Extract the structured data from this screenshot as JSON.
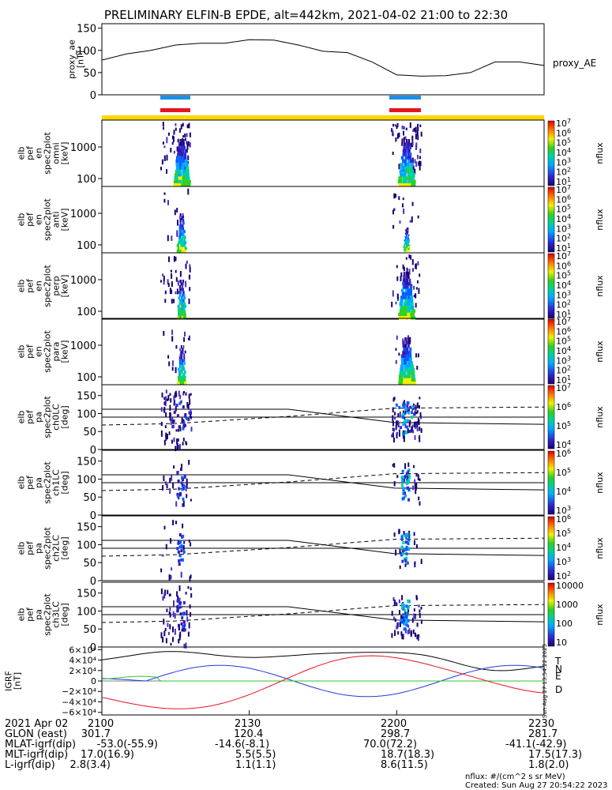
{
  "title": "PRELIMINARY ELFIN-B EPDE, alt=442km, 2021-04-02 21:00 to 22:30",
  "proxy_ae": {
    "ylabel": [
      "proxy_ae",
      "[nT]"
    ],
    "right_label": "proxy_AE",
    "yticks": [
      "150",
      "100",
      "50",
      "0"
    ],
    "ylim": [
      0,
      160
    ],
    "series_t": [
      0,
      5,
      10,
      15,
      20,
      25,
      30,
      35,
      40,
      45,
      50,
      55,
      60,
      65,
      70,
      75,
      80,
      85,
      90
    ],
    "series_v": [
      78,
      92,
      100,
      112,
      116,
      116,
      124,
      123,
      112,
      98,
      95,
      74,
      45,
      42,
      43,
      50,
      74,
      74,
      66
    ]
  },
  "colors": {
    "blue_bar": "#1e8fe6",
    "red_bar": "#e6141e",
    "yellow_bar": "#ffd700",
    "igrf_T": "#000000",
    "igrf_N": "#1e3cdc",
    "igrf_E": "#2ec82e",
    "igrf_D": "#e6141e"
  },
  "energy_panels": [
    {
      "ylabel": [
        "elb",
        "pef",
        "en",
        "spec2plot",
        "omni",
        "[keV]"
      ],
      "ticks": [
        "1000",
        "100"
      ],
      "cbar": [
        "10^7",
        "10^6",
        "10^5",
        "10^4",
        "10^3",
        "10^2",
        "10^1"
      ]
    },
    {
      "ylabel": [
        "elb",
        "pef",
        "en",
        "spec2plot",
        "anti",
        "[keV]"
      ],
      "ticks": [
        "1000",
        "100"
      ],
      "cbar": [
        "10^7",
        "10^6",
        "10^5",
        "10^4",
        "10^3",
        "10^2",
        "10^1"
      ]
    },
    {
      "ylabel": [
        "elb",
        "pef",
        "en",
        "spec2plot",
        "perp",
        "[keV]"
      ],
      "ticks": [
        "1000",
        "100"
      ],
      "cbar": [
        "10^7",
        "10^6",
        "10^5",
        "10^4",
        "10^3",
        "10^2",
        "10^1"
      ]
    },
    {
      "ylabel": [
        "elb",
        "pef",
        "en",
        "spec2plot",
        "para",
        "[keV]"
      ],
      "ticks": [
        "1000",
        "100"
      ],
      "cbar": [
        "10^7",
        "10^6",
        "10^5",
        "10^4",
        "10^3",
        "10^2",
        "10^1"
      ]
    }
  ],
  "pitch_panels": [
    {
      "ylabel": [
        "elb",
        "pef",
        "pa",
        "spec2plot",
        "ch0LC",
        "[deg]"
      ],
      "ticks": [
        "150",
        "100",
        "50",
        "0"
      ],
      "cbar": [
        "10^7",
        "10^6",
        "10^5",
        "10^4"
      ]
    },
    {
      "ylabel": [
        "elb",
        "pef",
        "pa",
        "spec2plot",
        "ch1LC",
        "[deg]"
      ],
      "ticks": [
        "150",
        "100",
        "50",
        "0"
      ],
      "cbar": [
        "10^6",
        "10^5",
        "10^4",
        "10^3"
      ]
    },
    {
      "ylabel": [
        "elb",
        "pef",
        "pa",
        "spec2plot",
        "ch2LC",
        "[deg]"
      ],
      "ticks": [
        "150",
        "100",
        "50",
        "0"
      ],
      "cbar": [
        "10^6",
        "10^5",
        "10^4",
        "10^3",
        "10^2"
      ]
    },
    {
      "ylabel": [
        "elb",
        "pef",
        "pa",
        "spec2plot",
        "ch3LC",
        "[deg]"
      ],
      "ticks": [
        "150",
        "100",
        "50",
        "0"
      ],
      "cbar": [
        "10000",
        "1000",
        "100",
        "10"
      ]
    }
  ],
  "cbar_title": "nflux",
  "igrf": {
    "ylabel": [
      "IGRF",
      "[nT]"
    ],
    "ticks": [
      "6×10⁴",
      "4×10⁴",
      "2×10⁴",
      "0",
      "−2×10⁴",
      "−4×10⁴",
      "−6×10⁴"
    ],
    "ylim": [
      -65000,
      65000
    ],
    "legend": [
      "T",
      "N",
      "E",
      "D"
    ],
    "side_text": "Sun Aug 27 13:54:22 2023"
  },
  "time_axis": {
    "row_label": "2021 Apr 02",
    "ticks": [
      "2100",
      "2130",
      "2200",
      "2230"
    ],
    "rows": [
      {
        "label": "GLON (east)",
        "values": [
          "301.7",
          "120.4",
          "298.7",
          "281.7"
        ]
      },
      {
        "label": "MLAT-igrf(dip)",
        "values": [
          "-53.0(-55.9)",
          "-14.6(-8.1)",
          "70.0(72.2)",
          "-41.1(-42.9)"
        ]
      },
      {
        "label": "MLT-igrf(dip)",
        "values": [
          "17.0(16.9)",
          "5.5(5.5)",
          "18.7(18.3)",
          "17.5(17.3)"
        ]
      },
      {
        "label": "L-igrf(dip)",
        "values": [
          "2.8(3.4)",
          "1.1(1.1)",
          "8.6(11.5)",
          "1.8(2.0)"
        ]
      }
    ]
  },
  "footer": {
    "units": "nflux: #/(cm^2 s sr MeV)",
    "created": "Created: Sun Aug 27 20:54:22 2023"
  }
}
